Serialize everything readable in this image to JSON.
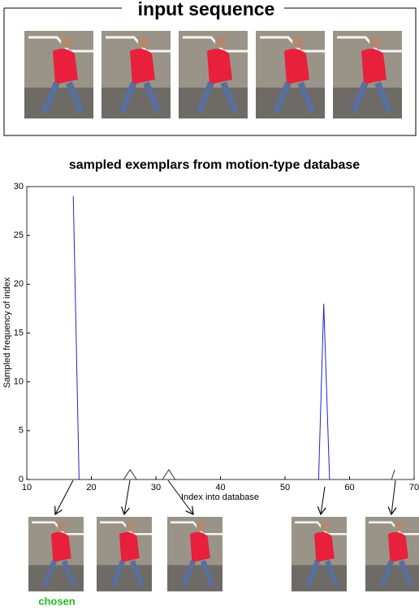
{
  "header": {
    "title": "input sequence"
  },
  "chart_data": {
    "type": "line",
    "title": "sampled exemplars from motion-type database",
    "xlabel": "Index into database",
    "ylabel": "Sampled frequency of index",
    "xlim": [
      10,
      70
    ],
    "xticks": [
      10,
      20,
      30,
      40,
      50,
      60,
      70
    ],
    "ylim": [
      0,
      30
    ],
    "yticks": [
      0,
      5,
      10,
      15,
      20,
      25,
      30
    ],
    "series": [
      {
        "color": "#2222cc",
        "x": [
          17.2,
          18.1,
          null,
          55.2,
          56,
          56.9
        ],
        "values": [
          29,
          0,
          null,
          0,
          18,
          0
        ]
      },
      {
        "color": "#333333",
        "x": [
          25,
          26,
          27,
          null,
          31,
          32,
          33,
          null,
          66.5,
          67
        ],
        "values": [
          0,
          1,
          0,
          null,
          0,
          1,
          0,
          null,
          0,
          1
        ]
      }
    ]
  },
  "annotations": {
    "chosen": "chosen"
  }
}
